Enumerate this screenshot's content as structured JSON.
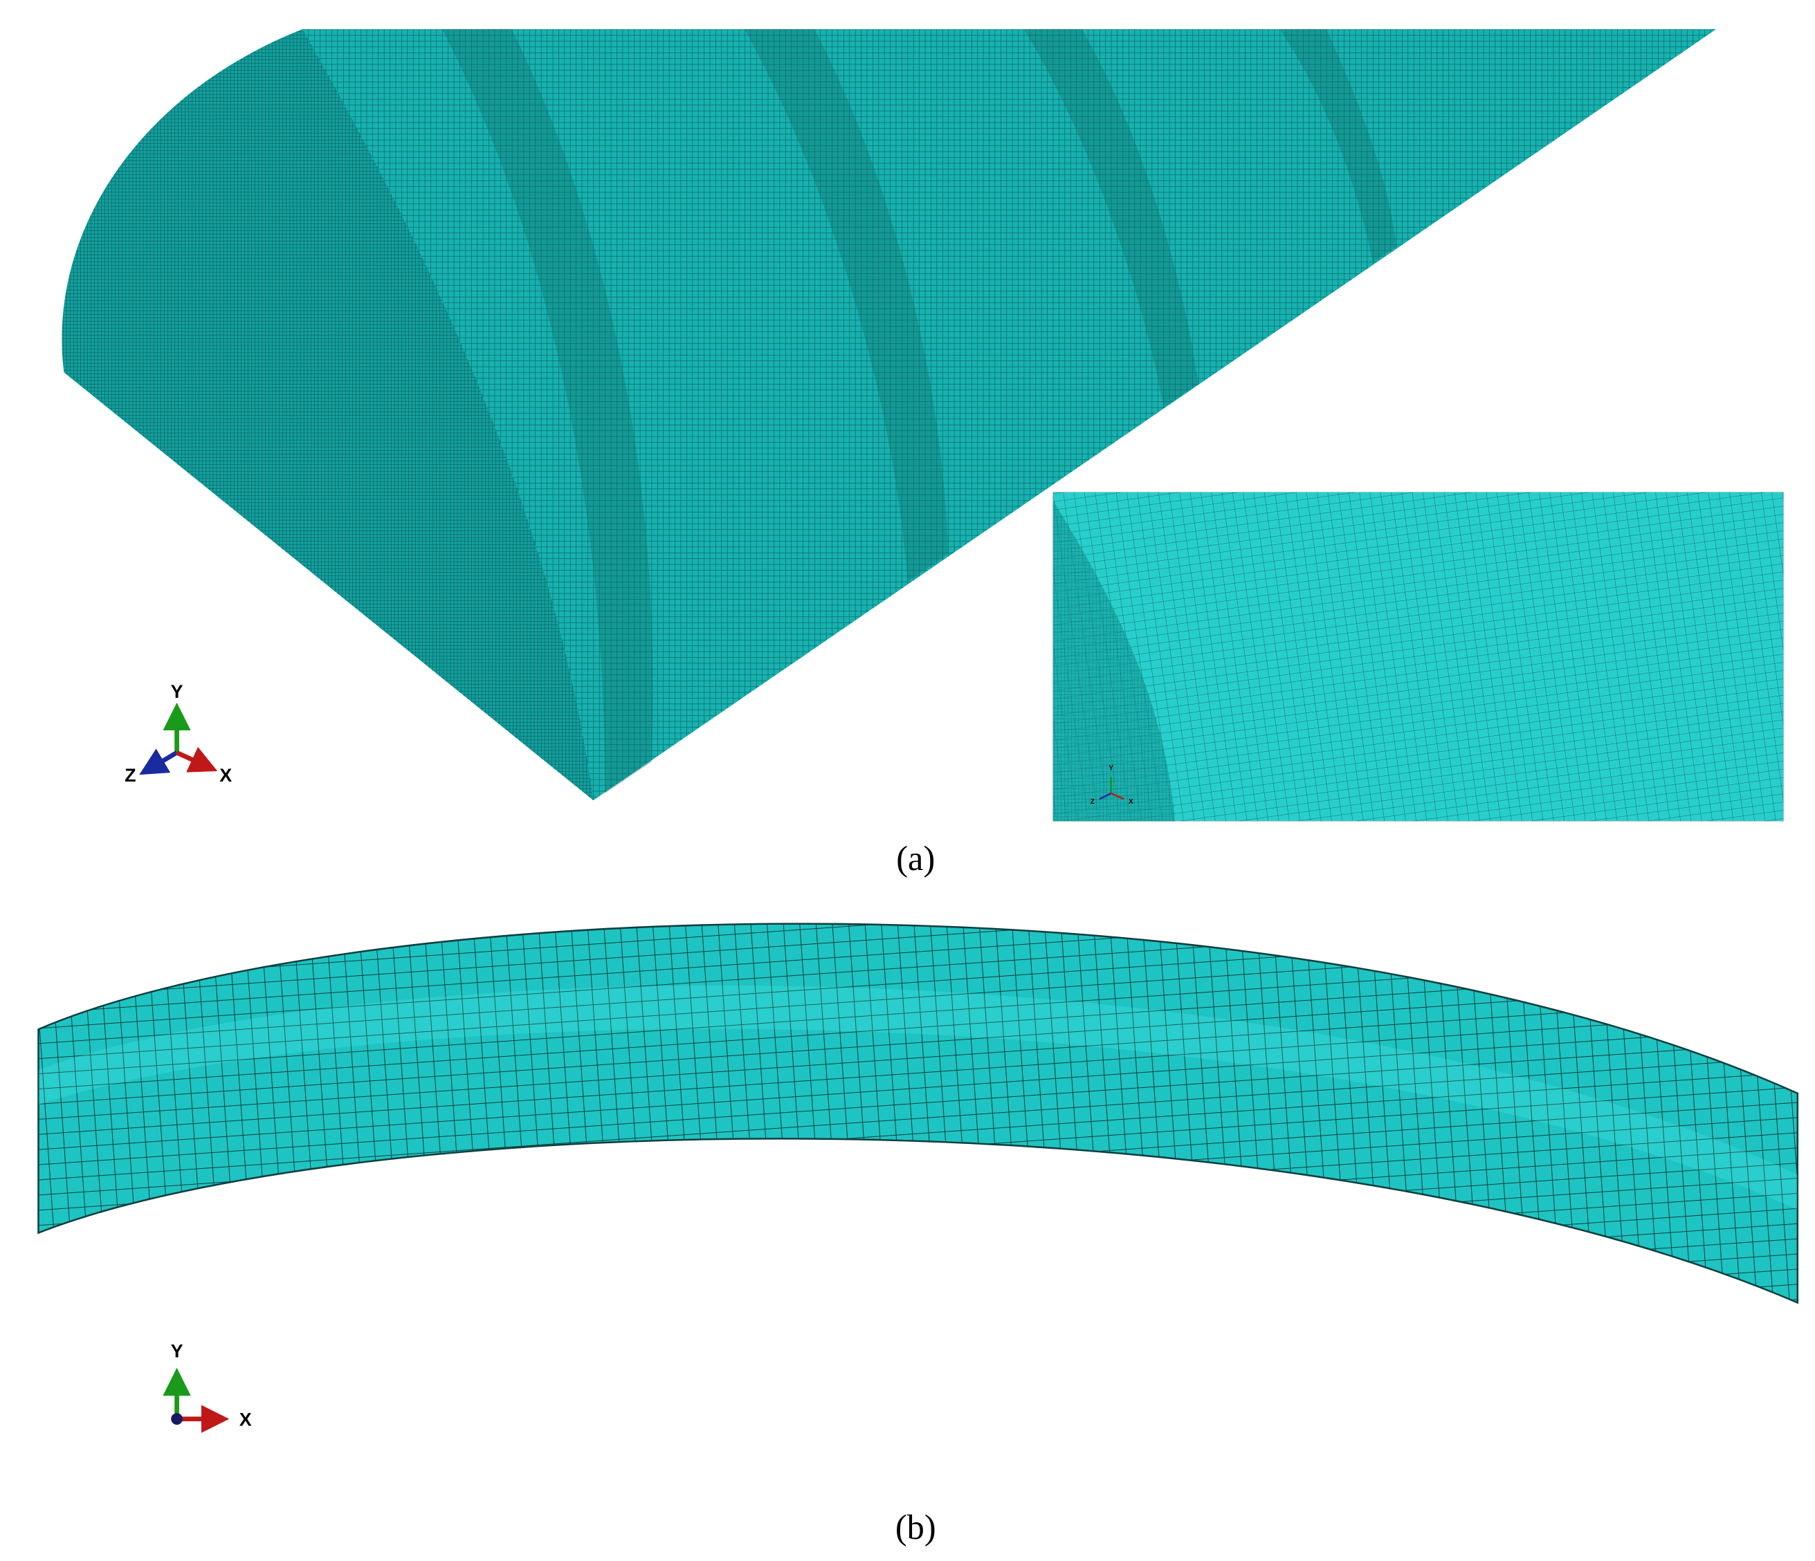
{
  "panels": [
    {
      "caption": "(a)",
      "triad": {
        "y": "Y",
        "z": "Z",
        "x": "X"
      },
      "inset_triad": {
        "y": "Y",
        "z": "Z",
        "x": "X"
      }
    },
    {
      "caption": "(b)",
      "triad": {
        "y": "Y",
        "x": "X"
      }
    }
  ]
}
